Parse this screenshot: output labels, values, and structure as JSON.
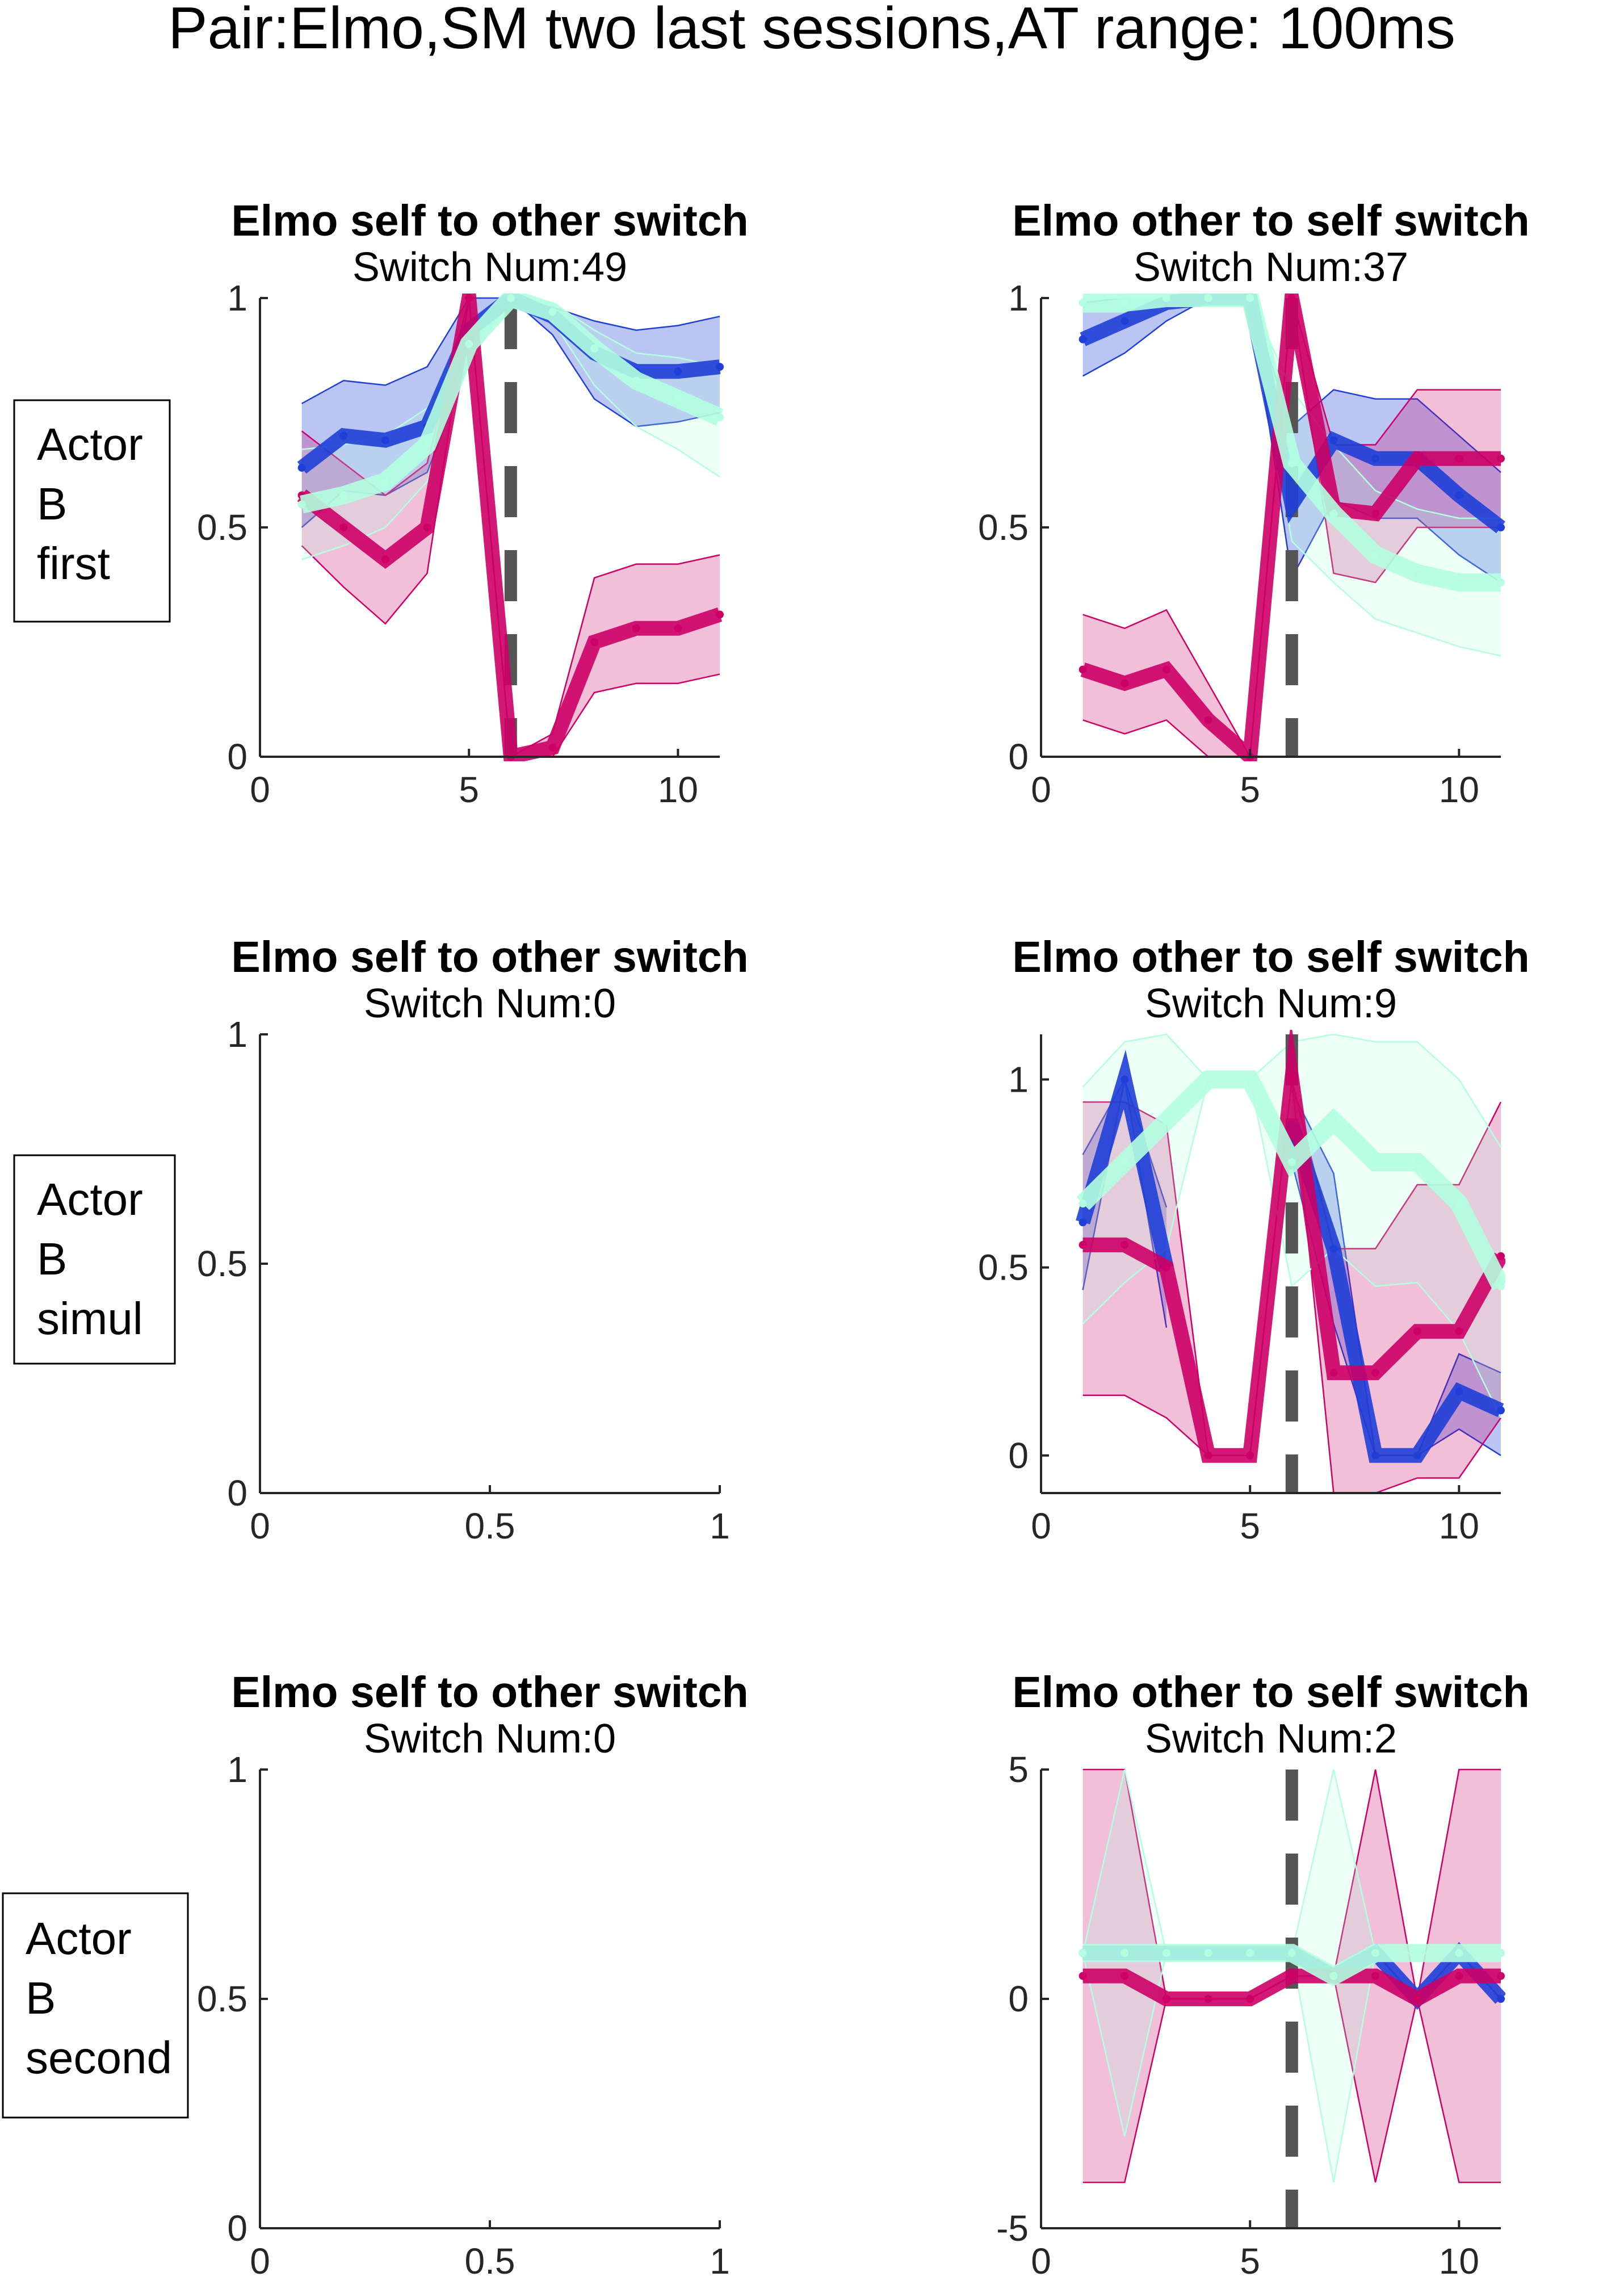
{
  "figure_title": "Pair:Elmo,SM two last sessions,AT range: 100ms",
  "row_labels": [
    {
      "lines": [
        "Actor",
        "B",
        "first"
      ]
    },
    {
      "lines": [
        "Actor",
        "B",
        "simul"
      ]
    },
    {
      "lines": [
        "Actor",
        "B",
        "second"
      ]
    }
  ],
  "colors": {
    "magenta": "#cc0066",
    "blue": "#1f3fd6",
    "mint": "#b3ffe0",
    "switch_marker": "#555555"
  },
  "chart_data": [
    {
      "type": "line",
      "row": 0,
      "col": 0,
      "title": "Elmo self to other switch",
      "subtitle": "Switch Num:49",
      "xlim": [
        0,
        11
      ],
      "ylim": [
        0,
        1
      ],
      "xticks": [
        0,
        5,
        10
      ],
      "xticklabels": [
        "0",
        "5",
        "10"
      ],
      "yticks": [
        0,
        0.5,
        1
      ],
      "yticklabels": [
        "0",
        "0.5",
        "1"
      ],
      "switch_x": 6,
      "series": [
        {
          "color_key": "blue",
          "x": [
            1,
            2,
            3,
            4,
            5,
            6,
            7,
            8,
            9,
            10,
            11
          ],
          "y": [
            0.63,
            0.7,
            0.69,
            0.72,
            0.93,
            1.0,
            0.96,
            0.88,
            0.84,
            0.84,
            0.85
          ],
          "lower": [
            0.5,
            0.58,
            0.57,
            0.62,
            0.86,
            1.0,
            0.92,
            0.78,
            0.72,
            0.73,
            0.75
          ],
          "upper": [
            0.77,
            0.82,
            0.81,
            0.85,
            1.0,
            1.0,
            0.98,
            0.95,
            0.93,
            0.94,
            0.96
          ]
        },
        {
          "color_key": "magenta",
          "x": [
            1,
            2,
            3,
            4,
            5,
            6,
            7,
            8,
            9,
            10,
            11
          ],
          "y": [
            0.57,
            0.5,
            0.43,
            0.5,
            1.0,
            0.0,
            0.02,
            0.25,
            0.28,
            0.28,
            0.31
          ],
          "lower": [
            0.46,
            0.37,
            0.29,
            0.4,
            1.0,
            0.0,
            0.0,
            0.14,
            0.16,
            0.16,
            0.18
          ],
          "upper": [
            0.71,
            0.64,
            0.57,
            0.64,
            1.0,
            0.0,
            0.05,
            0.39,
            0.42,
            0.42,
            0.44
          ]
        },
        {
          "color_key": "mint",
          "x": [
            1,
            2,
            3,
            4,
            5,
            6,
            7,
            8,
            9,
            10,
            11
          ],
          "y": [
            0.55,
            0.57,
            0.6,
            0.68,
            0.9,
            1.0,
            0.97,
            0.89,
            0.82,
            0.78,
            0.74
          ],
          "lower": [
            0.43,
            0.46,
            0.5,
            0.6,
            0.86,
            1.0,
            0.95,
            0.81,
            0.72,
            0.67,
            0.61
          ],
          "upper": [
            0.67,
            0.68,
            0.7,
            0.76,
            0.94,
            1.0,
            0.99,
            0.93,
            0.88,
            0.87,
            0.85
          ]
        }
      ]
    },
    {
      "type": "line",
      "row": 0,
      "col": 1,
      "title": "Elmo other to self switch",
      "subtitle": "Switch Num:37",
      "xlim": [
        0,
        11
      ],
      "ylim": [
        0,
        1
      ],
      "xticks": [
        0,
        5,
        10
      ],
      "xticklabels": [
        "0",
        "5",
        "10"
      ],
      "yticks": [
        0,
        0.5,
        1
      ],
      "yticklabels": [
        "0",
        "0.5",
        "1"
      ],
      "switch_x": 6,
      "series": [
        {
          "color_key": "blue",
          "x": [
            1,
            2,
            3,
            4,
            5,
            6,
            7,
            8,
            9,
            10,
            11
          ],
          "y": [
            0.91,
            0.95,
            0.99,
            1.0,
            1.0,
            0.55,
            0.69,
            0.65,
            0.65,
            0.57,
            0.5
          ],
          "lower": [
            0.83,
            0.88,
            0.95,
            1.0,
            1.0,
            0.39,
            0.56,
            0.52,
            0.52,
            0.44,
            0.38
          ],
          "upper": [
            0.99,
            1.0,
            1.0,
            1.0,
            1.0,
            0.72,
            0.8,
            0.78,
            0.78,
            0.7,
            0.62
          ]
        },
        {
          "color_key": "magenta",
          "x": [
            1,
            2,
            3,
            4,
            5,
            6,
            7,
            8,
            9,
            10,
            11
          ],
          "y": [
            0.19,
            0.16,
            0.19,
            0.08,
            0.0,
            1.0,
            0.54,
            0.53,
            0.65,
            0.65,
            0.65
          ],
          "lower": [
            0.08,
            0.05,
            0.08,
            0.0,
            0.0,
            1.0,
            0.4,
            0.38,
            0.5,
            0.5,
            0.5
          ],
          "upper": [
            0.31,
            0.28,
            0.32,
            0.16,
            0.0,
            1.0,
            0.68,
            0.68,
            0.8,
            0.8,
            0.8
          ]
        },
        {
          "color_key": "mint",
          "x": [
            1,
            2,
            3,
            4,
            5,
            6,
            7,
            8,
            9,
            10,
            11
          ],
          "y": [
            0.99,
            0.99,
            1.0,
            1.0,
            1.0,
            0.64,
            0.53,
            0.44,
            0.4,
            0.38,
            0.38
          ],
          "lower": [
            0.97,
            0.97,
            1.0,
            1.0,
            1.0,
            0.47,
            0.38,
            0.3,
            0.27,
            0.24,
            0.22
          ],
          "upper": [
            1.0,
            1.0,
            1.0,
            1.0,
            1.0,
            0.8,
            0.68,
            0.58,
            0.54,
            0.52,
            0.52
          ]
        }
      ]
    },
    {
      "type": "line",
      "row": 1,
      "col": 0,
      "title": "Elmo self to other switch",
      "subtitle": "Switch Num:0",
      "xlim": [
        0,
        1
      ],
      "ylim": [
        0,
        1
      ],
      "xticks": [
        0,
        0.5,
        1
      ],
      "xticklabels": [
        "0",
        "0.5",
        "1"
      ],
      "yticks": [
        0,
        0.5,
        1
      ],
      "yticklabels": [
        "0",
        "0.5",
        "1"
      ],
      "series": []
    },
    {
      "type": "line",
      "row": 1,
      "col": 1,
      "title": "Elmo other to self switch",
      "subtitle": "Switch Num:9",
      "xlim": [
        0,
        11
      ],
      "ylim": [
        -0.1,
        1.12
      ],
      "xticks": [
        0,
        5,
        10
      ],
      "xticklabels": [
        "0",
        "5",
        "10"
      ],
      "yticks": [
        0,
        0.5,
        1
      ],
      "yticklabels": [
        "0",
        "0.5",
        "1"
      ],
      "switch_x": 6,
      "series": [
        {
          "color_key": "blue",
          "x": [
            1,
            2,
            3
          ],
          "y": [
            0.62,
            1.0,
            0.5
          ],
          "lower": [
            0.44,
            1.0,
            0.34
          ],
          "upper": [
            0.8,
            1.0,
            0.66
          ]
        },
        {
          "color_key": "blue",
          "x": [
            6,
            7,
            8,
            9,
            10,
            11
          ],
          "y": [
            0.88,
            0.55,
            0.0,
            0.0,
            0.17,
            0.12
          ],
          "lower": [
            0.78,
            0.35,
            0.0,
            0.0,
            0.07,
            0.0
          ],
          "upper": [
            0.97,
            0.75,
            0.0,
            0.0,
            0.27,
            0.22
          ]
        },
        {
          "color_key": "magenta",
          "x": [
            1,
            2,
            3,
            4,
            5,
            6,
            7,
            8,
            9,
            10,
            11
          ],
          "y": [
            0.56,
            0.56,
            0.5,
            0.0,
            0.0,
            1.0,
            0.22,
            0.22,
            0.33,
            0.33,
            0.53
          ],
          "lower": [
            0.16,
            0.16,
            0.1,
            0.0,
            0.0,
            1.0,
            -0.1,
            -0.1,
            -0.06,
            -0.06,
            0.1
          ],
          "upper": [
            0.94,
            0.94,
            0.88,
            0.0,
            0.0,
            1.0,
            0.55,
            0.55,
            0.72,
            0.72,
            0.94
          ]
        },
        {
          "color_key": "mint",
          "x": [
            1,
            2,
            3,
            4,
            5,
            6,
            7,
            8,
            9,
            10,
            11
          ],
          "y": [
            0.67,
            0.78,
            0.89,
            1.0,
            1.0,
            0.78,
            0.89,
            0.78,
            0.78,
            0.67,
            0.45
          ],
          "lower": [
            0.35,
            0.46,
            0.55,
            1.0,
            1.0,
            0.45,
            0.55,
            0.45,
            0.46,
            0.33,
            0.1
          ],
          "upper": [
            0.98,
            1.1,
            1.12,
            1.0,
            1.0,
            1.1,
            1.12,
            1.1,
            1.1,
            1.0,
            0.82
          ]
        }
      ]
    },
    {
      "type": "line",
      "row": 2,
      "col": 0,
      "title": "Elmo self to other switch",
      "subtitle": "Switch Num:0",
      "xlim": [
        0,
        1
      ],
      "ylim": [
        0,
        1
      ],
      "xticks": [
        0,
        0.5,
        1
      ],
      "xticklabels": [
        "0",
        "0.5",
        "1"
      ],
      "yticks": [
        0,
        0.5,
        1
      ],
      "yticklabels": [
        "0",
        "0.5",
        "1"
      ],
      "series": []
    },
    {
      "type": "line",
      "row": 2,
      "col": 1,
      "title": "Elmo other to self switch",
      "subtitle": "Switch Num:2",
      "xlim": [
        0,
        11
      ],
      "ylim": [
        -5,
        5
      ],
      "xticks": [
        0,
        5,
        10
      ],
      "xticklabels": [
        "0",
        "5",
        "10"
      ],
      "yticks": [
        -5,
        0,
        5
      ],
      "yticklabels": [
        "-5",
        "0",
        "5"
      ],
      "switch_x": 6,
      "series": [
        {
          "color_key": "blue",
          "x": [
            1,
            2,
            3,
            4,
            5,
            6,
            7,
            8,
            9,
            10,
            11
          ],
          "y": [
            1.0,
            1.0,
            1.0,
            1.0,
            1.0,
            1.0,
            0.5,
            1.0,
            0.0,
            1.0,
            0.0
          ],
          "lower": [
            1.0,
            1.0,
            1.0,
            1.0,
            1.0,
            1.0,
            0.5,
            1.0,
            0.0,
            1.0,
            0.0
          ],
          "upper": [
            1.0,
            1.0,
            1.0,
            1.0,
            1.0,
            1.0,
            0.5,
            1.0,
            0.0,
            1.0,
            0.0
          ]
        },
        {
          "color_key": "magenta",
          "x": [
            1,
            2,
            3,
            4,
            5,
            6,
            7,
            8,
            9,
            10,
            11
          ],
          "y": [
            0.5,
            0.5,
            0.0,
            0.0,
            0.0,
            0.5,
            0.5,
            0.5,
            0.0,
            0.5,
            0.5
          ],
          "lower": [
            -4.0,
            -4.0,
            0.0,
            0.0,
            0.0,
            0.5,
            0.5,
            -4.0,
            0.0,
            -4.0,
            -4.0
          ],
          "upper": [
            5.0,
            5.0,
            0.0,
            0.0,
            0.0,
            0.5,
            0.5,
            5.0,
            0.0,
            5.0,
            5.0
          ]
        },
        {
          "color_key": "mint",
          "x": [
            1,
            2,
            3,
            4,
            5,
            6,
            7,
            8,
            9,
            10,
            11
          ],
          "y": [
            1.0,
            1.0,
            1.0,
            1.0,
            1.0,
            1.0,
            0.5,
            1.0,
            1.0,
            1.0,
            1.0
          ],
          "lower": [
            1.0,
            -3.0,
            1.0,
            1.0,
            1.0,
            1.0,
            -4.0,
            1.0,
            1.0,
            1.0,
            1.0
          ],
          "upper": [
            1.0,
            5.0,
            1.0,
            1.0,
            1.0,
            1.0,
            5.0,
            1.0,
            1.0,
            1.0,
            1.0
          ]
        }
      ]
    }
  ]
}
